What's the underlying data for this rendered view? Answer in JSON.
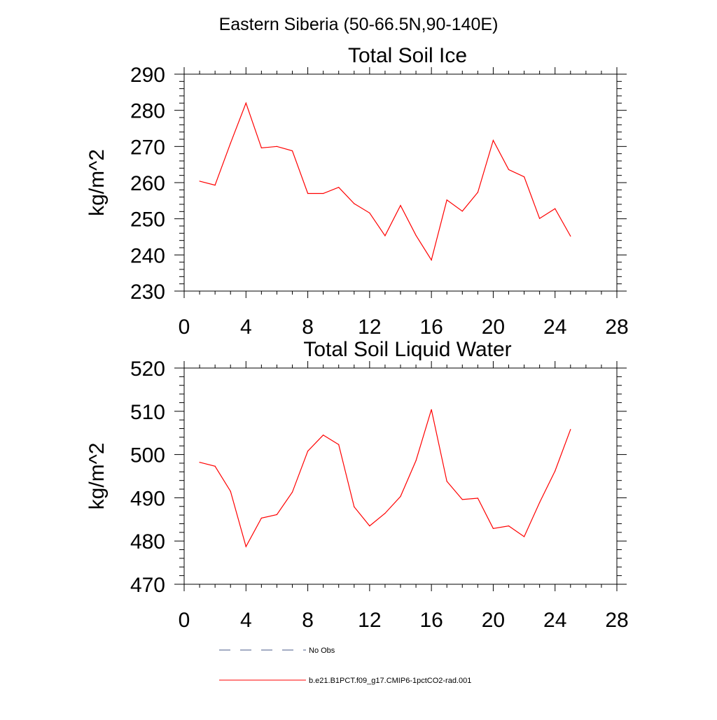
{
  "page": {
    "main_title": "Eastern Siberia (50-66.5N,90-140E)"
  },
  "chart_data": [
    {
      "type": "line",
      "title": "Total Soil Ice",
      "xlabel": "",
      "ylabel": "kg/m^2",
      "xlim": [
        0,
        28
      ],
      "ylim": [
        230,
        290
      ],
      "x_ticks": [
        0,
        4,
        8,
        12,
        16,
        20,
        24,
        28
      ],
      "y_ticks": [
        230,
        240,
        250,
        260,
        270,
        280,
        290
      ],
      "grid": false,
      "series": [
        {
          "color": "#ff0000",
          "x": [
            1,
            2,
            3,
            4,
            5,
            6,
            7,
            8,
            9,
            10,
            11,
            12,
            13,
            14,
            15,
            16,
            17,
            18,
            19,
            20,
            21,
            22,
            23,
            24,
            25
          ],
          "values": [
            260.4,
            259.3,
            270.9,
            282.0,
            269.6,
            270.0,
            268.8,
            257.0,
            257.0,
            258.7,
            254.2,
            251.6,
            245.3,
            253.7,
            245.4,
            238.6,
            255.2,
            252.1,
            257.3,
            271.7,
            263.6,
            261.6,
            250.1,
            252.8,
            245.2
          ]
        }
      ]
    },
    {
      "type": "line",
      "title": "Total Soil Liquid Water",
      "xlabel": "",
      "ylabel": "kg/m^2",
      "xlim": [
        0,
        28
      ],
      "ylim": [
        470,
        520
      ],
      "x_ticks": [
        0,
        4,
        8,
        12,
        16,
        20,
        24,
        28
      ],
      "y_ticks": [
        470,
        480,
        490,
        500,
        510,
        520
      ],
      "grid": false,
      "series": [
        {
          "color": "#ff0000",
          "x": [
            1,
            2,
            3,
            4,
            5,
            6,
            7,
            8,
            9,
            10,
            11,
            12,
            13,
            14,
            15,
            16,
            17,
            18,
            19,
            20,
            21,
            22,
            23,
            24,
            25
          ],
          "values": [
            498.2,
            497.3,
            491.5,
            478.7,
            485.3,
            486.1,
            491.3,
            500.8,
            504.5,
            502.3,
            487.9,
            483.5,
            486.4,
            490.3,
            498.6,
            510.4,
            493.8,
            489.6,
            489.9,
            482.9,
            483.5,
            481.0,
            488.9,
            496.2,
            505.8
          ]
        }
      ]
    }
  ],
  "legend": {
    "placement": "bottom",
    "items": [
      {
        "label": "No Obs",
        "color": "#4a5a8a",
        "style": "dashed"
      },
      {
        "label": "b.e21.B1PCT.f09_g17.CMIP6-1pctCO2-rad.001",
        "color": "#ff0000",
        "style": "solid"
      }
    ]
  }
}
